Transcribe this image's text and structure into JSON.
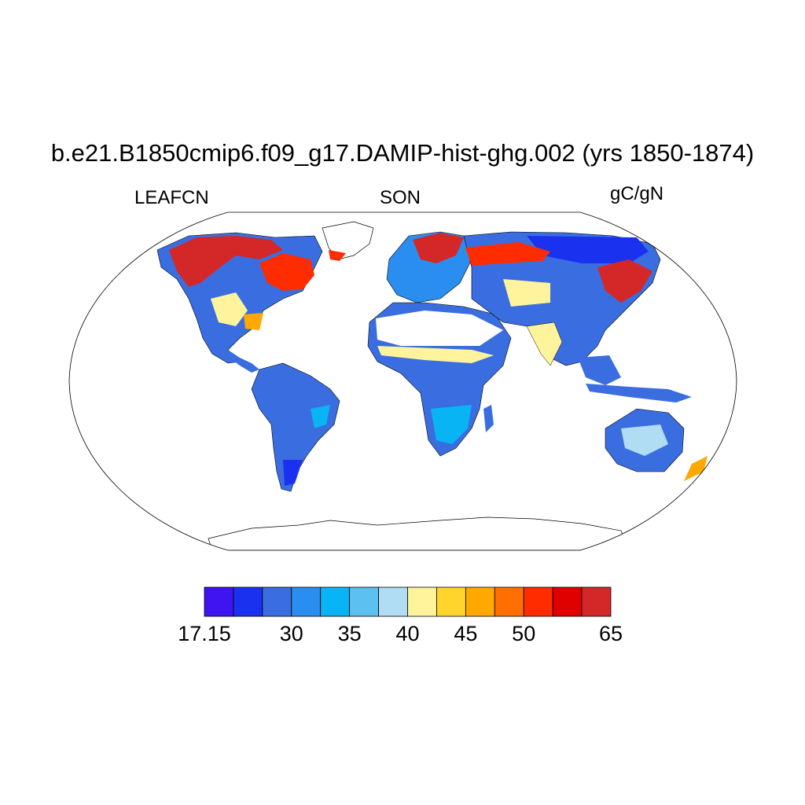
{
  "map": {
    "title": "b.e21.B1850cmip6.f09_g17.DAMIP-hist-ghg.002 (yrs 1850-1874)",
    "left_label": "LEAFCN",
    "center_label": "SON",
    "right_label": "gC/gN",
    "projection": "Robinson",
    "colorbar": {
      "orientation": "horizontal",
      "colors": [
        "#3e14f0",
        "#1a32f0",
        "#3a6ee0",
        "#2a8ef0",
        "#08b4f4",
        "#5cc0f0",
        "#b0dcf4",
        "#fff49c",
        "#ffd42c",
        "#ffa800",
        "#ff7000",
        "#ff2c00",
        "#e00000",
        "#d42828"
      ],
      "tick_labels": [
        "17.15",
        "30",
        "35",
        "40",
        "45",
        "50",
        "65"
      ],
      "tick_boundary_index": [
        0,
        3,
        5,
        7,
        9,
        11,
        14
      ]
    }
  }
}
